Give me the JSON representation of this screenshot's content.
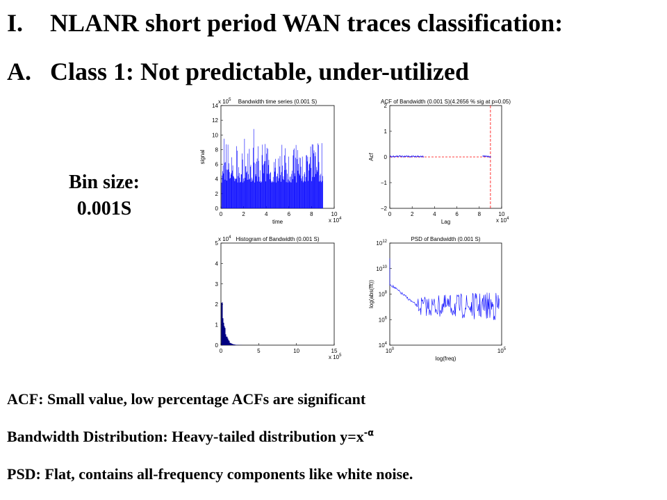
{
  "header": {
    "items": [
      {
        "marker": "I.",
        "text": "NLANR short period WAN traces classification:"
      },
      {
        "marker": "A.",
        "text": "Class 1: Not predictable, under-utilized"
      }
    ]
  },
  "bin_size": [
    "Bin size:",
    "0.001S"
  ],
  "plots": [
    {
      "title": "Bandwidth time series (0.001 S)",
      "xlabel": "time",
      "ylabel": "signal",
      "xticks": [
        "0",
        "2",
        "4",
        "6",
        "8",
        "10"
      ],
      "yticks": [
        "0",
        "2",
        "4",
        "6",
        "8",
        "10",
        "12",
        "14"
      ],
      "x_exponent": {
        "base": "x 10",
        "power": "4"
      },
      "y_exponent": {
        "base": "x 10",
        "power": "5"
      }
    },
    {
      "title": "ACF of Bandwidth (0.001 S)(4.2656 % sig at p=0.05)",
      "xlabel": "Lag",
      "ylabel": "Acf",
      "xticks": [
        "0",
        "2",
        "4",
        "6",
        "8",
        "10"
      ],
      "yticks": [
        "−2",
        "−1",
        "0",
        "1",
        "2"
      ],
      "x_exponent": {
        "base": "x 10",
        "power": "4"
      }
    },
    {
      "title": "Histogram of Bandwidth (0.001 S)",
      "xticks": [
        "0",
        "5",
        "10",
        "15"
      ],
      "yticks": [
        "0",
        "1",
        "2",
        "3",
        "4",
        "5"
      ],
      "x_exponent": {
        "base": "x 10",
        "power": "5"
      },
      "y_exponent": {
        "base": "x 10",
        "power": "4"
      }
    },
    {
      "title": "PSD of Bandwidth (0.001 S)",
      "xlabel": "log(freq)",
      "ylabel": "log(abs(fft))",
      "xticks": [
        {
          "base": "10",
          "power": "0"
        },
        {
          "base": "10",
          "power": "5"
        }
      ],
      "yticks": [
        {
          "base": "10",
          "power": "4"
        },
        {
          "base": "10",
          "power": "6"
        },
        {
          "base": "10",
          "power": "8"
        },
        {
          "base": "10",
          "power": "10"
        },
        {
          "base": "10",
          "power": "12"
        }
      ]
    }
  ],
  "notes": [
    {
      "text": "ACF: Small value, low percentage ACFs are significant"
    },
    {
      "text": "Bandwidth Distribution: Heavy-tailed distribution y=x",
      "superscript": "-α"
    },
    {
      "text": "PSD: Flat, contains all-frequency components like white noise."
    }
  ]
}
